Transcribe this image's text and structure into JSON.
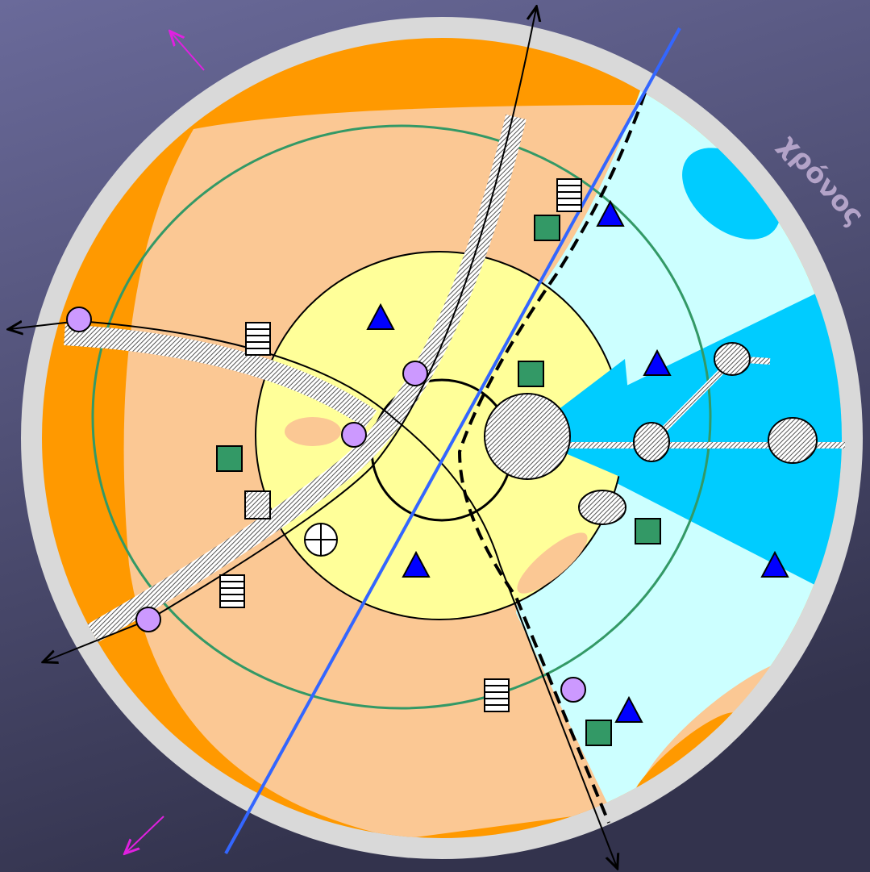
{
  "label": "χρόνος"
}
